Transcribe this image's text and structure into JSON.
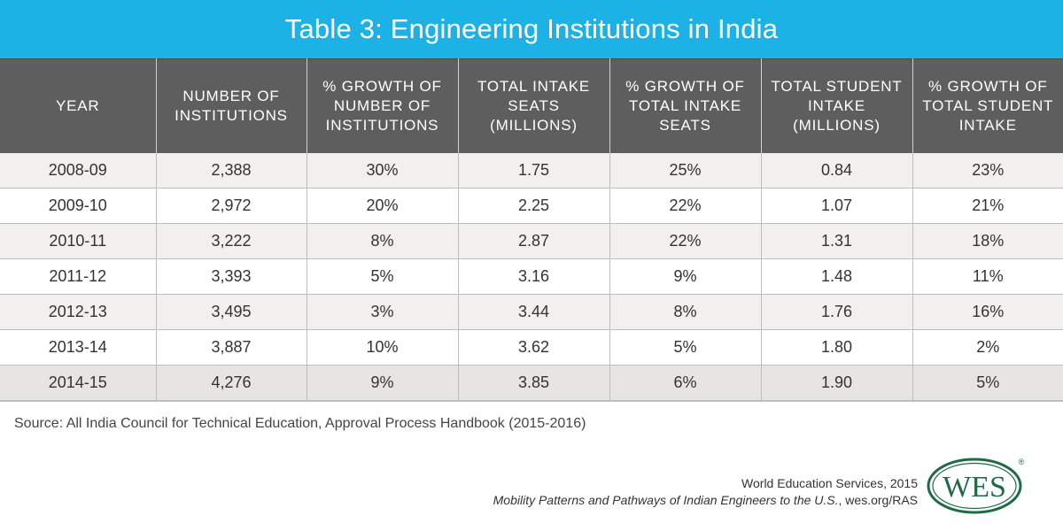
{
  "title": "Table 3: Engineering Institutions in India",
  "chart_data": {
    "type": "table",
    "columns": [
      "YEAR",
      "NUMBER OF INSTITUTIONS",
      "% GROWTH OF NUMBER OF INSTITUTIONS",
      "TOTAL INTAKE SEATS (MILLIONS)",
      "% GROWTH OF TOTAL INTAKE SEATS",
      "TOTAL STUDENT INTAKE (MILLIONS)",
      "% GROWTH OF TOTAL STUDENT INTAKE"
    ],
    "rows": [
      [
        "2008-09",
        "2,388",
        "30%",
        "1.75",
        "25%",
        "0.84",
        "23%"
      ],
      [
        "2009-10",
        "2,972",
        "20%",
        "2.25",
        "22%",
        "1.07",
        "21%"
      ],
      [
        "2010-11",
        "3,222",
        "8%",
        "2.87",
        "22%",
        "1.31",
        "18%"
      ],
      [
        "2011-12",
        "3,393",
        "5%",
        "3.16",
        "9%",
        "1.48",
        "11%"
      ],
      [
        "2012-13",
        "3,495",
        "3%",
        "3.44",
        "8%",
        "1.76",
        "16%"
      ],
      [
        "2013-14",
        "3,887",
        "10%",
        "3.62",
        "5%",
        "1.80",
        "2%"
      ],
      [
        "2014-15",
        "4,276",
        "9%",
        "3.85",
        "6%",
        "1.90",
        "5%"
      ]
    ]
  },
  "source": "Source: All India Council for Technical Education, Approval Process Handbook (2015-2016)",
  "credit": {
    "org": "World Education Services, 2015",
    "publication": "Mobility Patterns and Pathways of Indian Engineers to the U.S.",
    "suffix": ", wes.org/RAS"
  },
  "logo": {
    "text": "WES",
    "mark": "®",
    "color": "#1f6b43"
  },
  "colors": {
    "title_bar": "#1cb2e6",
    "header": "#5e5e5e"
  }
}
